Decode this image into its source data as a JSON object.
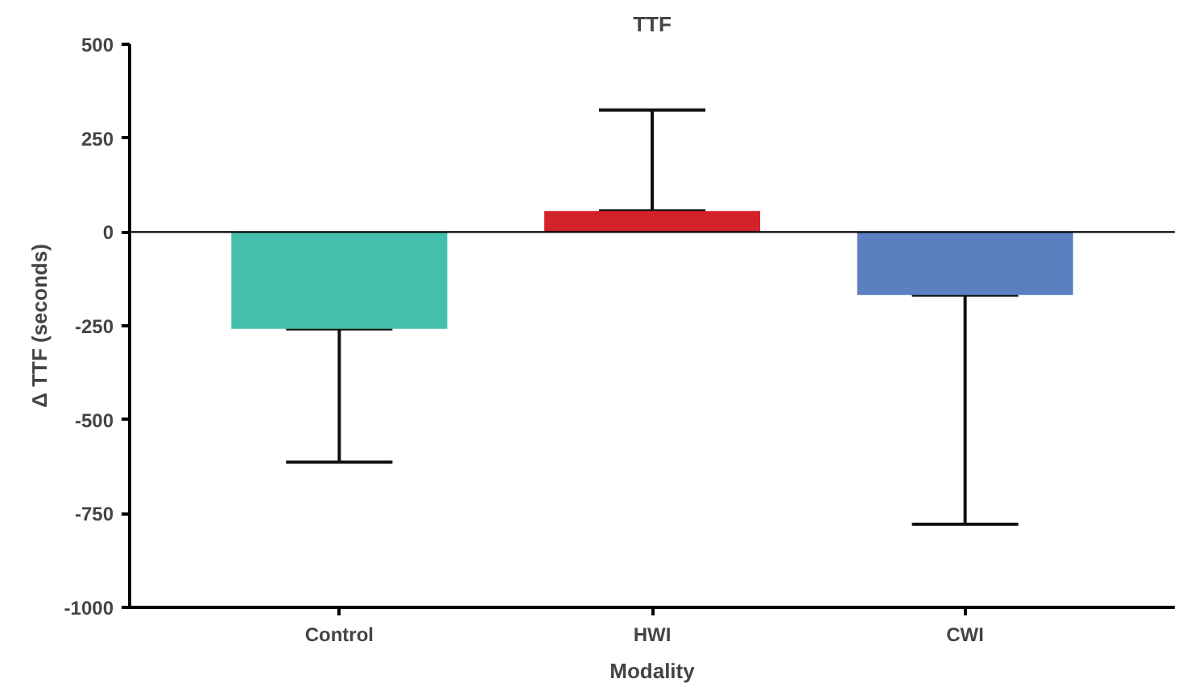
{
  "chart_data": {
    "type": "bar",
    "title": "TTF",
    "xlabel": "Modality",
    "ylabel": "Δ TTF (seconds)",
    "categories": [
      "Control",
      "HWI",
      "CWI"
    ],
    "values": [
      -258,
      56,
      -168
    ],
    "colors": [
      "#44bfac",
      "#d2232a",
      "#5b7fbf"
    ],
    "errors": [
      [
        -613,
        -258
      ],
      [
        56,
        325
      ],
      [
        -779,
        -168
      ]
    ],
    "ylim": [
      -1000,
      500
    ],
    "yticks": [
      -1000,
      -750,
      -500,
      -250,
      0,
      250,
      500
    ],
    "ref_lines": [
      {
        "axis": "y",
        "value": 0,
        "label": null,
        "color": "#000000"
      }
    ],
    "grid": false
  }
}
